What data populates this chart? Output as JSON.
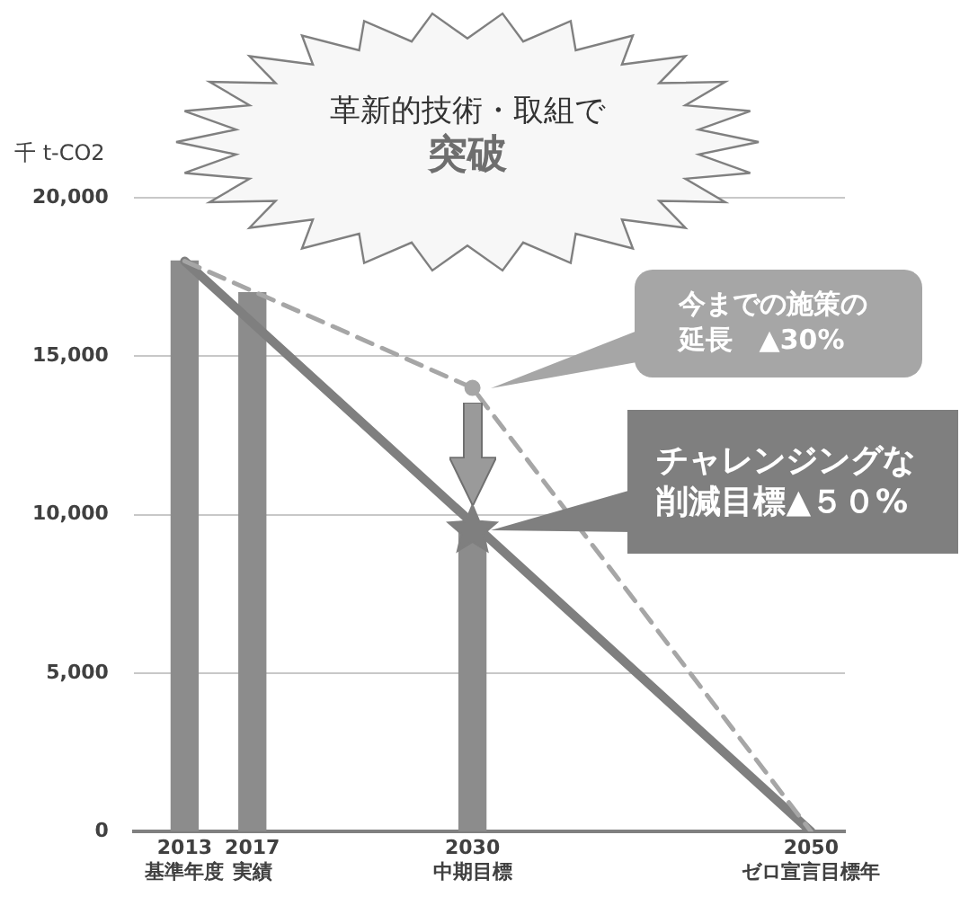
{
  "chart_data": {
    "type": "bar",
    "ylabel": "千 t-CO2",
    "xlim": [
      2010,
      2052
    ],
    "ylim": [
      0,
      20000
    ],
    "yticks": [
      0,
      {
        "value": 5000,
        "label": "5,000"
      },
      {
        "value": 10000,
        "label": "10,000"
      },
      {
        "value": 15000,
        "label": "15,000"
      },
      {
        "value": 20000,
        "label": "20,000"
      }
    ],
    "xticks": [
      {
        "value": 2013,
        "label": "2013\n基準年度"
      },
      {
        "value": 2017,
        "label": "2017\n実績"
      },
      {
        "value": 2030,
        "label": "2030\n中期目標"
      },
      {
        "value": 2050,
        "label": "2050\nゼロ宣言目標年"
      }
    ],
    "grid": "y",
    "series": [
      {
        "type": "bar",
        "x": [
          2013,
          2017,
          2030
        ],
        "values": [
          18000,
          17000,
          9500
        ],
        "color": "#8c8c8c"
      },
      {
        "type": "line",
        "x": [
          2013,
          2050
        ],
        "values": [
          18000,
          0
        ],
        "color": "#7f7f7f",
        "line_style": "solid"
      },
      {
        "type": "line",
        "x": [
          2013,
          2030,
          2050
        ],
        "values": [
          18000,
          14000,
          0
        ],
        "color": "#a6a6a6",
        "line_style": "dashed"
      },
      {
        "type": "scatter",
        "x": [
          2030
        ],
        "values": [
          14000
        ],
        "color": "#a6a6a6",
        "marker": "circle"
      },
      {
        "type": "scatter",
        "x": [
          2030
        ],
        "values": [
          9500
        ],
        "color": "#7f7f7f",
        "marker": "star"
      }
    ],
    "annotations": [
      "革新的技術・取組で",
      "突破",
      "今までの施策の延長　▲30%",
      "チャレンジングな削減目標▲５０%"
    ]
  }
}
